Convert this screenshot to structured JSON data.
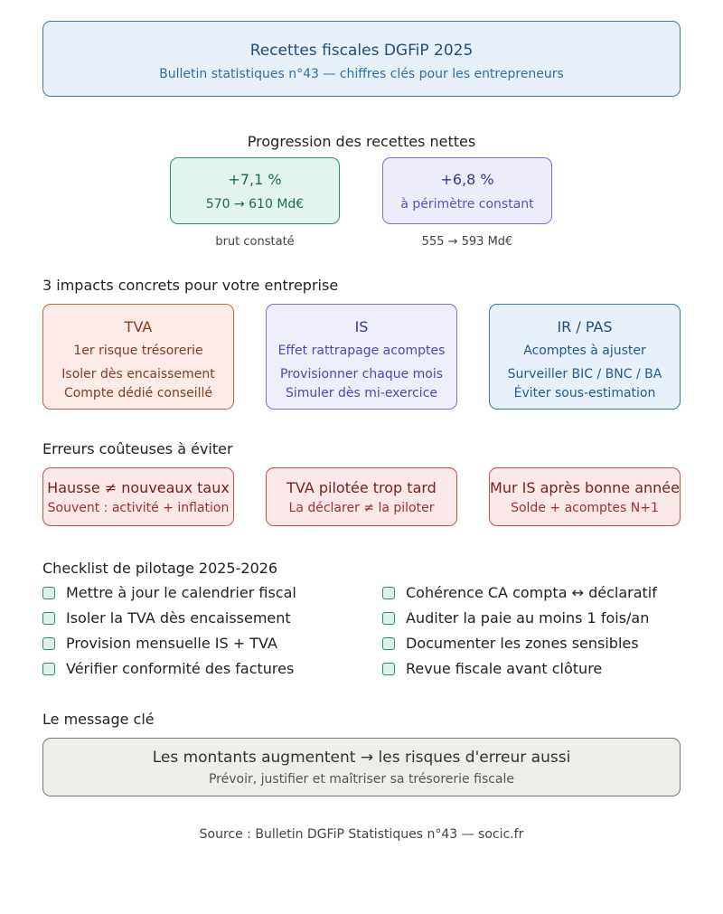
{
  "header": {
    "title": "Recettes fiscales DGFiP 2025",
    "subtitle": "Bulletin statistiques n°43 — chiffres clés pour les entrepreneurs"
  },
  "progression": {
    "heading": "Progression des recettes nettes",
    "cards": [
      {
        "value": "+7,1 %",
        "detail": "570 → 610 Md€",
        "caption": "brut constaté"
      },
      {
        "value": "+6,8 %",
        "detail": "à périmètre constant",
        "caption": "555 → 593 Md€"
      }
    ]
  },
  "impacts": {
    "heading": "3 impacts concrets pour votre entreprise",
    "cards": [
      {
        "title": "TVA",
        "line1": "1er risque trésorerie",
        "line2": "Isoler dès encaissement",
        "line3": "Compte dédié conseillé"
      },
      {
        "title": "IS",
        "line1": "Effet rattrapage acomptes",
        "line2": "Provisionner chaque mois",
        "line3": "Simuler dès mi-exercice"
      },
      {
        "title": "IR / PAS",
        "line1": "Acomptes à ajuster",
        "line2": "Surveiller BIC / BNC / BA",
        "line3": "Éviter sous-estimation"
      }
    ]
  },
  "errors": {
    "heading": "Erreurs coûteuses à éviter",
    "cards": [
      {
        "title": "Hausse ≠ nouveaux taux",
        "detail": "Souvent : activité + inflation"
      },
      {
        "title": "TVA pilotée trop tard",
        "detail": "La déclarer ≠ la piloter"
      },
      {
        "title": "Mur IS après bonne année",
        "detail": "Solde + acomptes N+1"
      }
    ]
  },
  "checklist": {
    "heading": "Checklist de pilotage 2025-2026",
    "left": [
      "Mettre à jour le calendrier fiscal",
      "Isoler la TVA dès encaissement",
      "Provision mensuelle IS + TVA",
      "Vérifier conformité des factures"
    ],
    "right": [
      "Cohérence CA compta ↔ déclaratif",
      "Auditer la paie au moins 1 fois/an",
      "Documenter les zones sensibles",
      "Revue fiscale avant clôture"
    ]
  },
  "message": {
    "heading": "Le message clé",
    "line1": "Les montants augmentent → les risques d'erreur aussi",
    "line2": "Prévoir, justifier et maîtriser sa trésorerie fiscale"
  },
  "source": "Source : Bulletin DGFiP Statistiques n°43 — socic.fr",
  "colors": {
    "blue": "#3a78b5",
    "green": "#2e8b6a",
    "purple": "#7a6fd1",
    "orange": "#c0643f",
    "red": "#c0504d",
    "gray": "#777777"
  }
}
